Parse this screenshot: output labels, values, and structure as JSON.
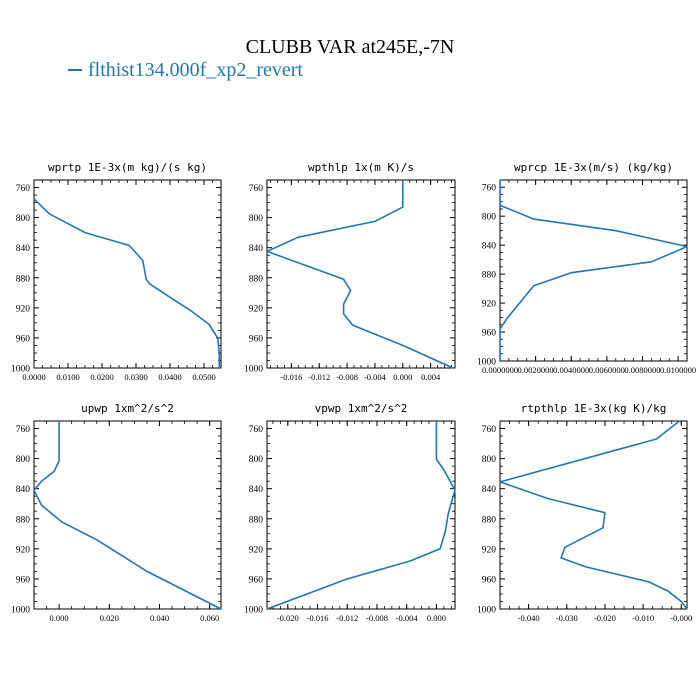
{
  "figure": {
    "title": "CLUBB VAR at245E,-7N",
    "legend_label": "flthist134.000f_xp2_revert",
    "line_color": "#1f77b4"
  },
  "chart_data": [
    {
      "type": "line",
      "title": "wprtp  1E-3x(m kg)/(s kg)",
      "xlim": [
        0.0,
        0.055
      ],
      "ylim": [
        1000,
        750
      ],
      "xticks": [
        0.0,
        0.01,
        0.02,
        0.03,
        0.04,
        0.05
      ],
      "xtick_labels": [
        "0.0000",
        "0.0100",
        "0.0200",
        "0.0300",
        "0.0400",
        "0.0500"
      ],
      "yticks": [
        760,
        800,
        840,
        880,
        920,
        960,
        1000
      ],
      "series": [
        {
          "x": [
            0.0,
            0.0045,
            0.015,
            0.028,
            0.032,
            0.033,
            0.034,
            0.039,
            0.0465,
            0.0515,
            0.054,
            0.0545,
            0.0545
          ],
          "y": [
            775,
            795,
            820,
            837,
            857,
            882,
            888,
            903,
            925,
            942,
            960,
            980,
            1000
          ]
        }
      ]
    },
    {
      "type": "line",
      "title": "wpthlp  1x(m K)/s",
      "xlim": [
        -0.0195,
        0.0075
      ],
      "ylim": [
        1000,
        750
      ],
      "xticks": [
        -0.016,
        -0.012,
        -0.008,
        -0.004,
        0.0,
        0.004
      ],
      "xtick_labels": [
        "-0.016",
        "-0.012",
        "-0.008",
        "-0.004",
        "0.000",
        "0.004"
      ],
      "yticks": [
        760,
        800,
        840,
        880,
        920,
        960,
        1000
      ],
      "series": [
        {
          "x": [
            0.0,
            0.0,
            -0.004,
            -0.015,
            -0.0195,
            -0.015,
            -0.0085,
            -0.0075,
            -0.0085,
            -0.0085,
            -0.0072,
            0.0,
            0.0072
          ],
          "y": [
            750,
            786,
            805,
            826,
            845,
            860,
            882,
            897,
            915,
            928,
            943,
            970,
            1000
          ]
        }
      ]
    },
    {
      "type": "line",
      "title": "wprcp  1E-3x(m/s) (kg/kg)",
      "xlim": [
        0.0,
        0.0105
      ],
      "ylim": [
        1000,
        750
      ],
      "xticks": [
        0.0,
        0.002,
        0.004,
        0.006,
        0.008,
        0.01
      ],
      "xtick_labels": [
        "0.0000000",
        "0.0020000",
        "0.0040000",
        "0.0060000",
        "0.0080000",
        "0.0100000"
      ],
      "yticks": [
        760,
        800,
        840,
        880,
        920,
        960,
        1000
      ],
      "series": [
        {
          "x": [
            0.0,
            0.0,
            0.0019,
            0.0065,
            0.0105,
            0.0085,
            0.004,
            0.0019,
            0.0014,
            0.0009,
            0.0004,
            0.0,
            0.0
          ],
          "y": [
            750,
            785,
            804,
            820,
            842,
            863,
            878,
            896,
            911,
            926,
            941,
            956,
            1000
          ]
        }
      ]
    },
    {
      "type": "line",
      "title": "upwp  1xm^2/s^2",
      "xlim": [
        -0.01,
        0.0645
      ],
      "ylim": [
        1000,
        750
      ],
      "xticks": [
        0.0,
        0.02,
        0.04,
        0.06
      ],
      "xtick_labels": [
        "0.000",
        "0.020",
        "0.040",
        "0.060"
      ],
      "yticks": [
        760,
        800,
        840,
        880,
        920,
        960,
        1000
      ],
      "series": [
        {
          "x": [
            0.0,
            0.0,
            -0.002,
            -0.007,
            -0.01,
            -0.007,
            0.001,
            0.015,
            0.035,
            0.0645
          ],
          "y": [
            750,
            803,
            817,
            830,
            842,
            862,
            884,
            908,
            950,
            1000
          ]
        }
      ]
    },
    {
      "type": "line",
      "title": "vpwp  1xm^2/s^2",
      "xlim": [
        -0.0228,
        0.0025
      ],
      "ylim": [
        1000,
        750
      ],
      "xticks": [
        -0.02,
        -0.016,
        -0.012,
        -0.008,
        -0.004,
        0.0
      ],
      "xtick_labels": [
        "-0.020",
        "-0.016",
        "-0.012",
        "-0.008",
        "-0.004",
        "0.000"
      ],
      "yticks": [
        760,
        800,
        840,
        880,
        920,
        960,
        1000
      ],
      "series": [
        {
          "x": [
            0.0,
            0.0,
            0.001,
            0.0025,
            0.0016,
            0.0012,
            0.0005,
            -0.0035,
            -0.012,
            -0.0228
          ],
          "y": [
            750,
            801,
            815,
            842,
            873,
            897,
            920,
            936,
            960,
            1000
          ]
        }
      ]
    },
    {
      "type": "line",
      "title": "rtpthlp  1E-3x(kg K)/kg",
      "xlim": [
        -0.0475,
        0.0015
      ],
      "ylim": [
        1000,
        750
      ],
      "xticks": [
        -0.04,
        -0.03,
        -0.02,
        -0.01,
        0.0
      ],
      "xtick_labels": [
        "-0.040",
        "-0.030",
        "-0.020",
        "-0.010",
        "-0.000"
      ],
      "yticks": [
        760,
        800,
        840,
        880,
        920,
        960,
        1000
      ],
      "series": [
        {
          "x": [
            -0.0005,
            -0.0065,
            -0.0475,
            -0.035,
            -0.02,
            -0.0205,
            -0.0305,
            -0.0315,
            -0.025,
            -0.0085,
            -0.0035,
            0.0,
            0.0015
          ],
          "y": [
            750,
            774,
            831,
            853,
            872,
            892,
            918,
            932,
            944,
            964,
            976,
            990,
            1000
          ]
        }
      ]
    }
  ]
}
